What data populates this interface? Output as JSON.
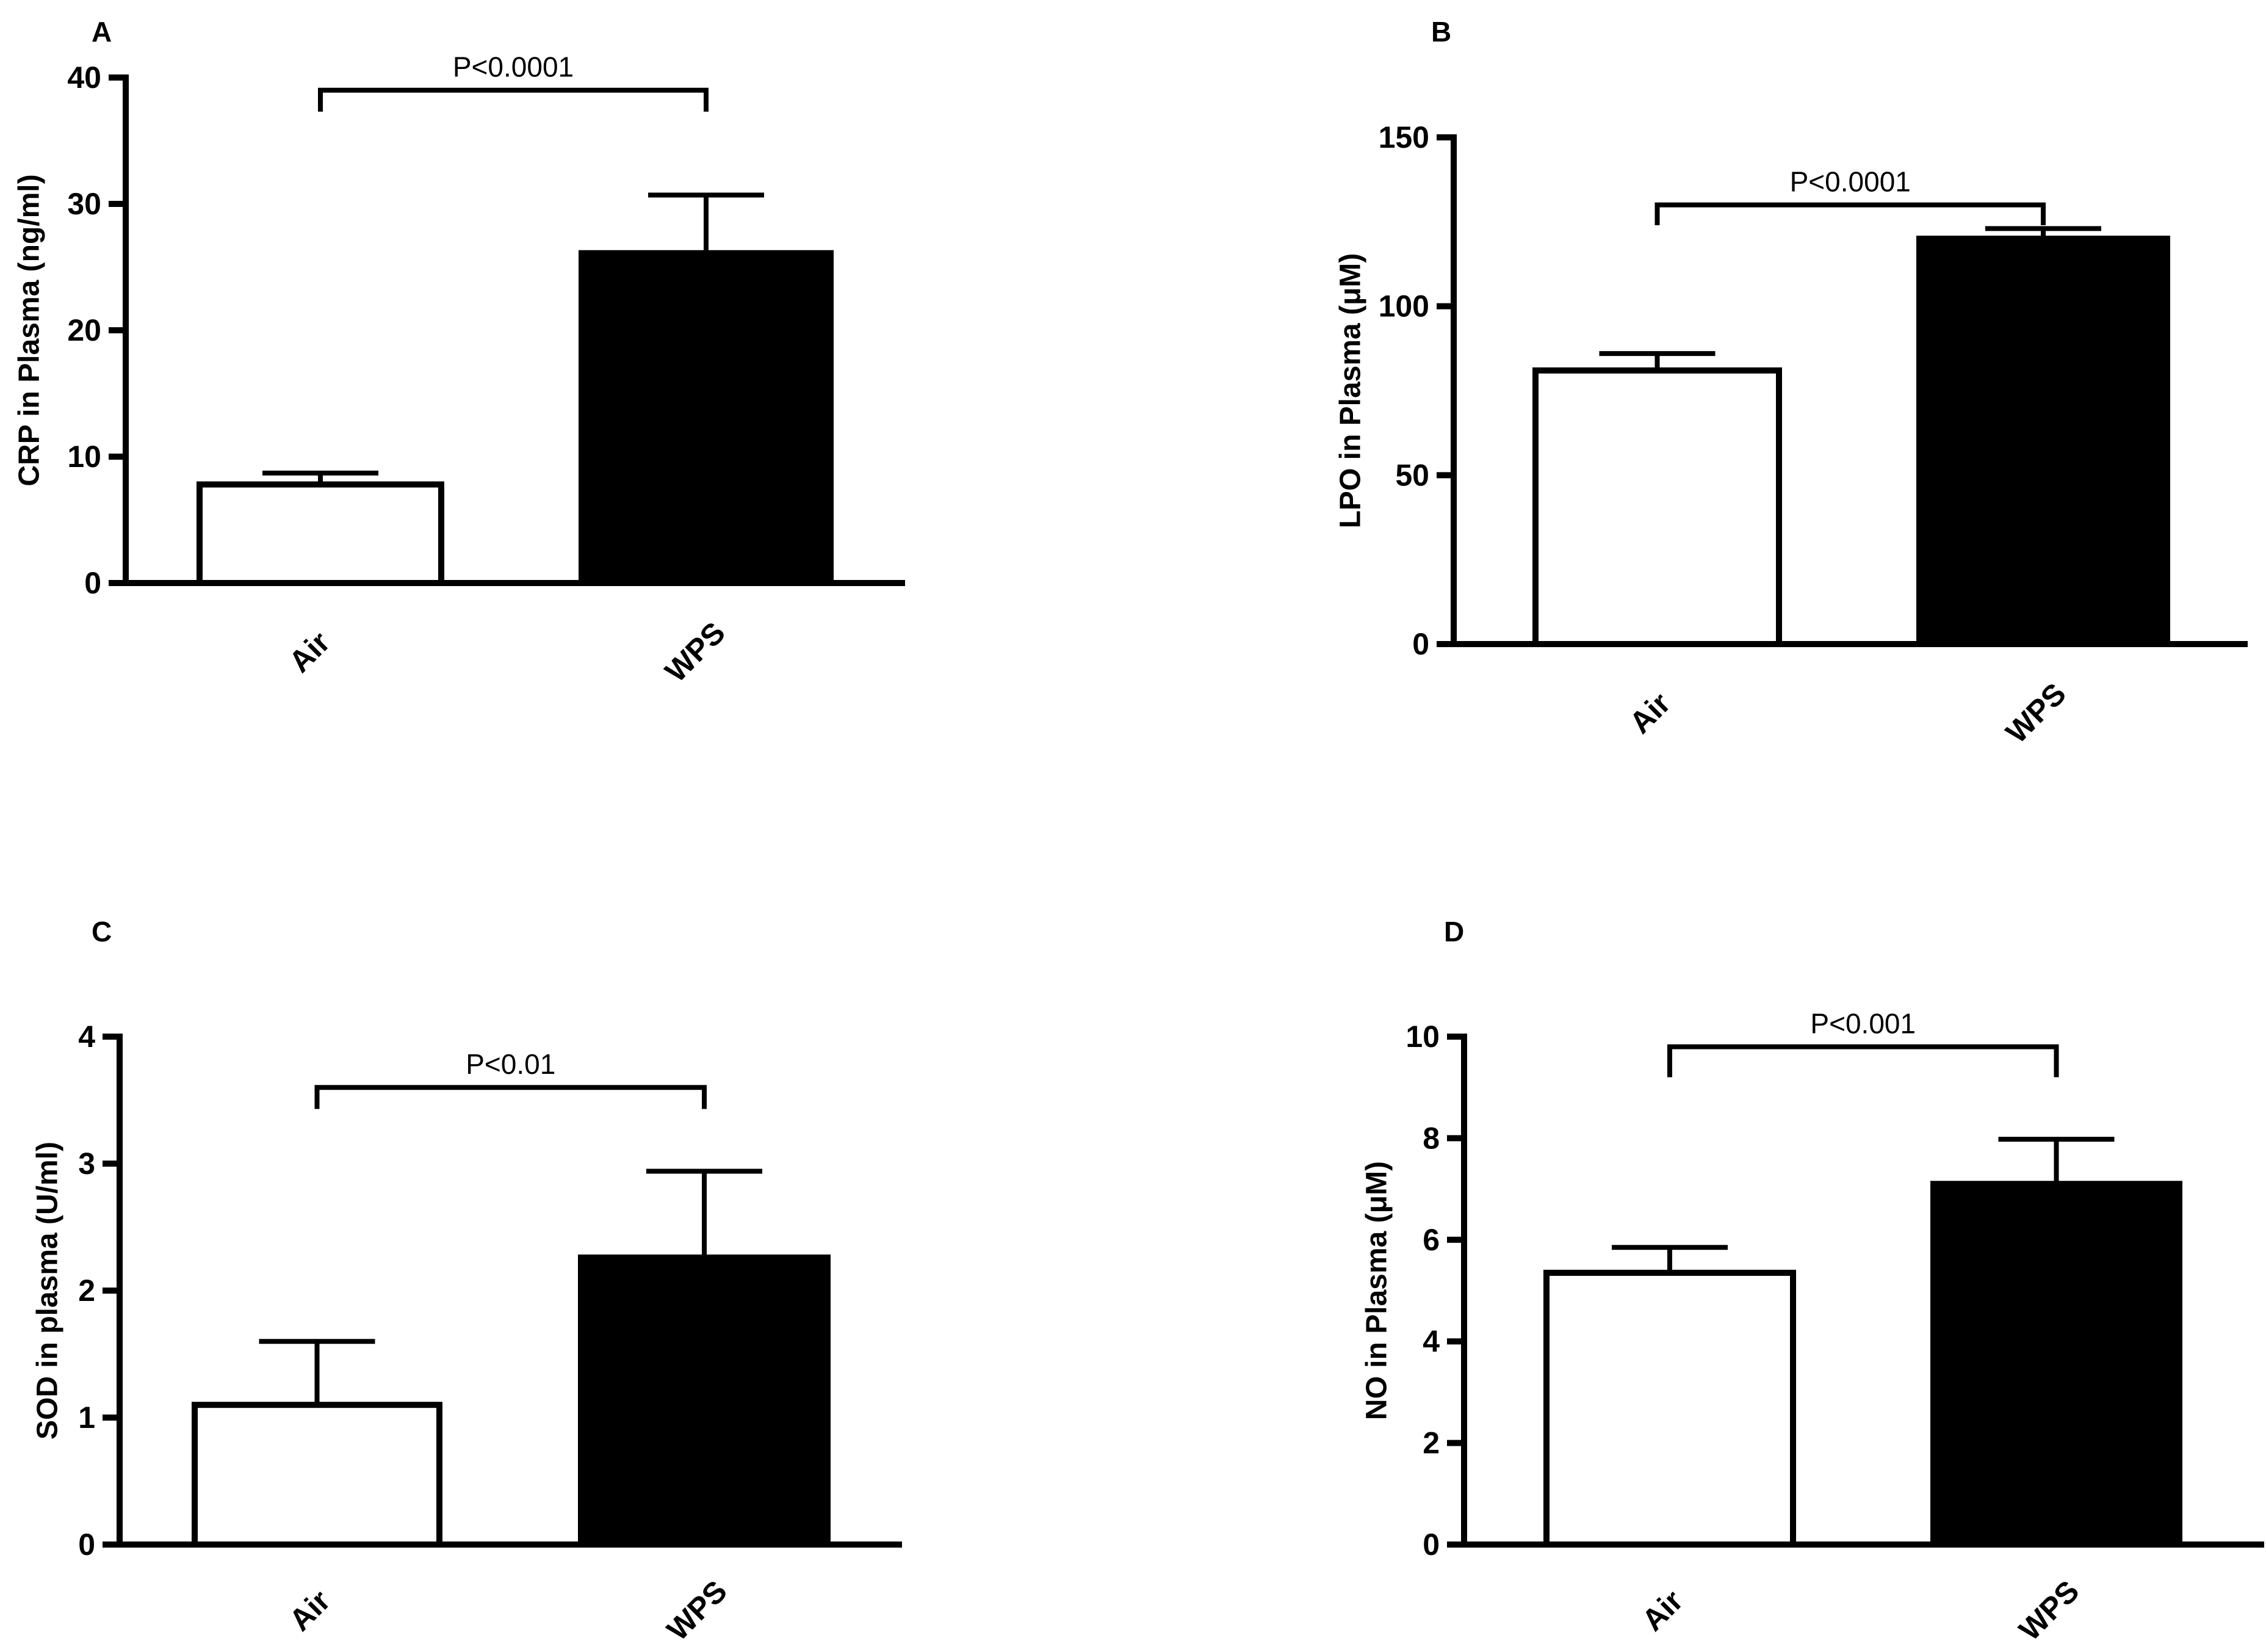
{
  "chart_data": [
    {
      "type": "bar",
      "panel": "A",
      "title": "",
      "xlabel": "",
      "ylabel": "CRP in Plasma (ng/ml)",
      "categories": [
        "Air",
        "WPS"
      ],
      "values": [
        7.8,
        26.1
      ],
      "errors": [
        0.9,
        4.6
      ],
      "bar_colors": [
        "#ffffff",
        "#000000"
      ],
      "ylim": [
        0,
        40
      ],
      "yticks": [
        0,
        10,
        20,
        30,
        40
      ],
      "significance": {
        "label": "P<0.0001",
        "y": 39.0,
        "drop": 1.7
      }
    },
    {
      "type": "bar",
      "panel": "B",
      "title": "",
      "xlabel": "",
      "ylabel": "LPO in Plasma (μM)",
      "categories": [
        "Air",
        "WPS"
      ],
      "values": [
        81,
        120
      ],
      "errors": [
        5,
        3
      ],
      "bar_colors": [
        "#ffffff",
        "#000000"
      ],
      "ylim": [
        0,
        150
      ],
      "yticks": [
        0,
        50,
        100,
        150
      ],
      "significance": {
        "label": "P<0.0001",
        "y": 130,
        "drop": 6
      }
    },
    {
      "type": "bar",
      "panel": "C",
      "title": "",
      "xlabel": "",
      "ylabel": "SOD in plasma (U/ml)",
      "categories": [
        "Air",
        "WPS"
      ],
      "values": [
        1.1,
        2.26
      ],
      "errors": [
        0.5,
        0.68
      ],
      "bar_colors": [
        "#ffffff",
        "#000000"
      ],
      "ylim": [
        0,
        4
      ],
      "yticks": [
        0,
        1,
        2,
        3,
        4
      ],
      "significance": {
        "label": "P<0.01",
        "y": 3.6,
        "drop": 0.17
      }
    },
    {
      "type": "bar",
      "panel": "D",
      "title": "",
      "xlabel": "",
      "ylabel": "NO in Plasma (μM)",
      "categories": [
        "Air",
        "WPS"
      ],
      "values": [
        5.35,
        7.1
      ],
      "errors": [
        0.5,
        0.88
      ],
      "bar_colors": [
        "#ffffff",
        "#000000"
      ],
      "ylim": [
        0,
        10
      ],
      "yticks": [
        0,
        2,
        4,
        6,
        8,
        10
      ],
      "significance": {
        "label": "P<0.001",
        "y": 9.8,
        "drop": 0.6
      }
    }
  ]
}
